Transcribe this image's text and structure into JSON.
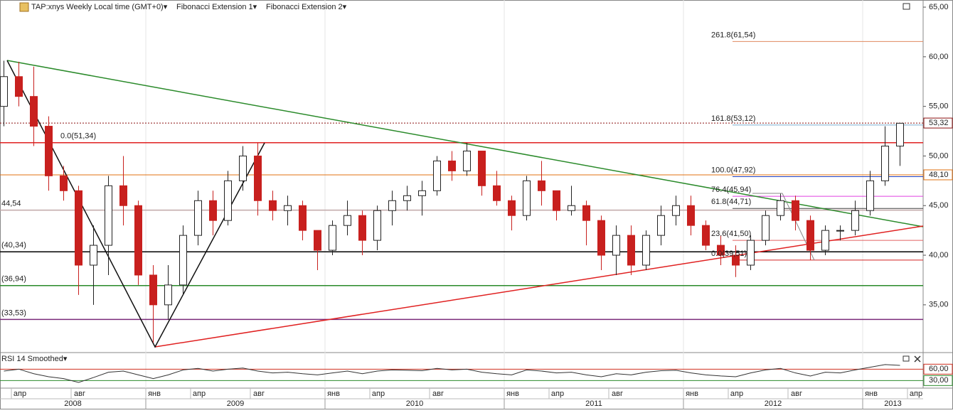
{
  "chart_data": {
    "type": "candlestick",
    "title": "TAP:xnys Weekly Local time (GMT+0)▾",
    "indicators": [
      "Fibonacci Extension 1▾",
      "Fibonacci Extension 2▾"
    ],
    "x": [
      "2008-03",
      "2008-04",
      "2008-05",
      "2008-06",
      "2008-07",
      "2008-08",
      "2008-09",
      "2008-10",
      "2008-11",
      "2008-12",
      "2009-01",
      "2009-02",
      "2009-03",
      "2009-04",
      "2009-05",
      "2009-06",
      "2009-07",
      "2009-08",
      "2009-09",
      "2009-10",
      "2009-11",
      "2009-12",
      "2010-01",
      "2010-02",
      "2010-03",
      "2010-04",
      "2010-05",
      "2010-06",
      "2010-07",
      "2010-08",
      "2010-09",
      "2010-10",
      "2010-11",
      "2010-12",
      "2011-01",
      "2011-02",
      "2011-03",
      "2011-04",
      "2011-05",
      "2011-06",
      "2011-07",
      "2011-08",
      "2011-09",
      "2011-10",
      "2011-11",
      "2011-12",
      "2012-01",
      "2012-02",
      "2012-03",
      "2012-04",
      "2012-05",
      "2012-06",
      "2012-07",
      "2012-08",
      "2012-09",
      "2012-10",
      "2012-11",
      "2012-12",
      "2013-01",
      "2013-02",
      "2013-03"
    ],
    "open": [
      55,
      58,
      56,
      53,
      48,
      46.5,
      39,
      41,
      47,
      45,
      38,
      35,
      37,
      42,
      45.5,
      43.5,
      47.5,
      50,
      45.5,
      44.5,
      45,
      42.5,
      40.5,
      43,
      44,
      41.5,
      44.5,
      45.5,
      46,
      46.5,
      49.5,
      48.5,
      50.5,
      47,
      45.5,
      44,
      47.5,
      46.5,
      44.5,
      45,
      43.5,
      40,
      42,
      39,
      42,
      44,
      45,
      43,
      41,
      40,
      39,
      41.5,
      44,
      45.5,
      43.5,
      40.5,
      42.5,
      42.5,
      44.5,
      47.5,
      51
    ],
    "high": [
      59.6,
      59.5,
      59,
      54,
      49,
      47,
      43,
      48,
      50,
      45.5,
      39,
      39,
      43,
      46.5,
      46.5,
      48.5,
      51,
      51.3,
      46.5,
      46,
      45.5,
      42.5,
      43.5,
      45.5,
      44.5,
      45,
      46.5,
      47,
      47.5,
      50,
      50.5,
      51.3,
      50.5,
      48.5,
      46,
      48,
      49.5,
      46.5,
      47,
      45.5,
      44,
      43,
      43,
      42.5,
      45,
      46,
      46,
      43.5,
      42,
      41,
      42,
      44.5,
      46.2,
      46,
      44,
      43,
      43,
      45.5,
      48.5,
      53,
      53.3
    ],
    "low": [
      53,
      55,
      51,
      46.5,
      45.5,
      36,
      35,
      38,
      43,
      37,
      31.2,
      33.5,
      36,
      41,
      42,
      43,
      46.5,
      44,
      43.5,
      43,
      41.5,
      38.5,
      40,
      42,
      40,
      40.5,
      43,
      44.5,
      44,
      46,
      47.5,
      48,
      46,
      45,
      42.5,
      43.5,
      45,
      43.5,
      44,
      41,
      38.5,
      38,
      38,
      38.5,
      41,
      43,
      42,
      40.5,
      39,
      37.8,
      38.5,
      41,
      43.5,
      42.5,
      39.5,
      40,
      41.5,
      42,
      44,
      47,
      49
    ],
    "close": [
      58,
      56,
      53,
      48,
      46.5,
      39,
      41,
      47,
      45,
      38,
      35,
      37,
      42,
      45.5,
      43.5,
      47.5,
      50,
      45.5,
      44.5,
      45,
      42.5,
      40.5,
      43,
      44,
      41.5,
      44.5,
      45.5,
      46,
      46.5,
      49.5,
      48.5,
      50.5,
      47,
      45.5,
      44,
      47.5,
      46.5,
      44.5,
      45,
      43.5,
      40,
      42,
      39,
      42,
      44,
      45,
      43,
      41,
      40,
      39,
      41.5,
      44,
      45.5,
      43.5,
      40.5,
      42.5,
      42.5,
      44.5,
      47.5,
      51,
      53.3
    ],
    "up_color": "#ffffff",
    "down_color": "#c8201e",
    "ylim": [
      30.26,
      65.72
    ],
    "yticks": [
      {
        "value": 35,
        "label": "35,00"
      },
      {
        "value": 40,
        "label": "40,00"
      },
      {
        "value": 45,
        "label": "45,00"
      },
      {
        "value": 50,
        "label": "50,00"
      },
      {
        "value": 55,
        "label": "55,00"
      },
      {
        "value": 60,
        "label": "60,00"
      },
      {
        "value": 65,
        "label": "65,00"
      }
    ],
    "levels": [
      {
        "value": 51.34,
        "label": "0.0(51,34)",
        "color": "#e02020"
      },
      {
        "value": 44.54,
        "label": "44,54",
        "color": "#c0a8a8"
      },
      {
        "value": 40.34,
        "label": "(40,34)",
        "color": "#000000"
      },
      {
        "value": 36.94,
        "label": "(36,94)",
        "color": "#2a8a2a"
      },
      {
        "value": 33.53,
        "label": "(33,53)",
        "color": "#7a2a7a"
      }
    ],
    "fib2_levels": [
      {
        "value": 61.54,
        "label": "261.8(61,54)",
        "color": "#e08a60"
      },
      {
        "value": 53.12,
        "label": "161.8(53,12)",
        "color": "#7aaed0"
      },
      {
        "value": 47.92,
        "label": "100.0(47,92)",
        "color": "#2040c0"
      },
      {
        "value": 45.94,
        "label": "76.4(45,94)",
        "color": "#e040e0"
      },
      {
        "value": 44.71,
        "label": "61.8(44,71)",
        "color": "#404040"
      },
      {
        "value": 41.5,
        "label": "23.6(41,50)",
        "color": "#e06060"
      },
      {
        "value": 39.51,
        "label": "0.0(39,51)",
        "color": "#d02020"
      }
    ],
    "price_markers": [
      {
        "value": 53.32,
        "label": "53,32",
        "color": "#8a1010"
      },
      {
        "value": 48.1,
        "label": "48,10",
        "color": "#e07010"
      }
    ],
    "xticks": [
      {
        "value": "2008-04",
        "label": "апр"
      },
      {
        "value": "2008-08",
        "label": "авг"
      },
      {
        "value": "2009-01",
        "label": "янв"
      },
      {
        "value": "2009-04",
        "label": "апр"
      },
      {
        "value": "2009-08",
        "label": "авг"
      },
      {
        "value": "2010-01",
        "label": "янв"
      },
      {
        "value": "2010-04",
        "label": "апр"
      },
      {
        "value": "2010-08",
        "label": "авг"
      },
      {
        "value": "2011-01",
        "label": "янв"
      },
      {
        "value": "2011-04",
        "label": "апр"
      },
      {
        "value": "2011-08",
        "label": "авг"
      },
      {
        "value": "2012-01",
        "label": "янв"
      },
      {
        "value": "2012-04",
        "label": "апр"
      },
      {
        "value": "2012-08",
        "label": "авг"
      },
      {
        "value": "2013-01",
        "label": "янв"
      },
      {
        "value": "2013-04",
        "label": "апр"
      }
    ],
    "years": [
      "2008",
      "2009",
      "2010",
      "2011",
      "2012",
      "2013"
    ],
    "rsi": {
      "title": "RSI 14 Smoothed▾",
      "color": "#333333",
      "values": [
        55,
        60,
        48,
        40,
        35,
        25,
        38,
        52,
        55,
        45,
        35,
        45,
        58,
        62,
        55,
        60,
        63,
        55,
        50,
        52,
        48,
        45,
        50,
        55,
        48,
        55,
        58,
        57,
        56,
        62,
        58,
        60,
        52,
        48,
        45,
        58,
        55,
        50,
        52,
        45,
        40,
        48,
        45,
        52,
        56,
        57,
        50,
        45,
        42,
        40,
        50,
        58,
        62,
        50,
        42,
        52,
        50,
        58,
        65,
        72,
        70
      ],
      "ylim": [
        10,
        100
      ],
      "levels": [
        {
          "value": 60,
          "label": "60,00",
          "color": "#d03020"
        },
        {
          "value": 30,
          "label": "30,00",
          "color": "#2a8a2a"
        }
      ]
    }
  }
}
